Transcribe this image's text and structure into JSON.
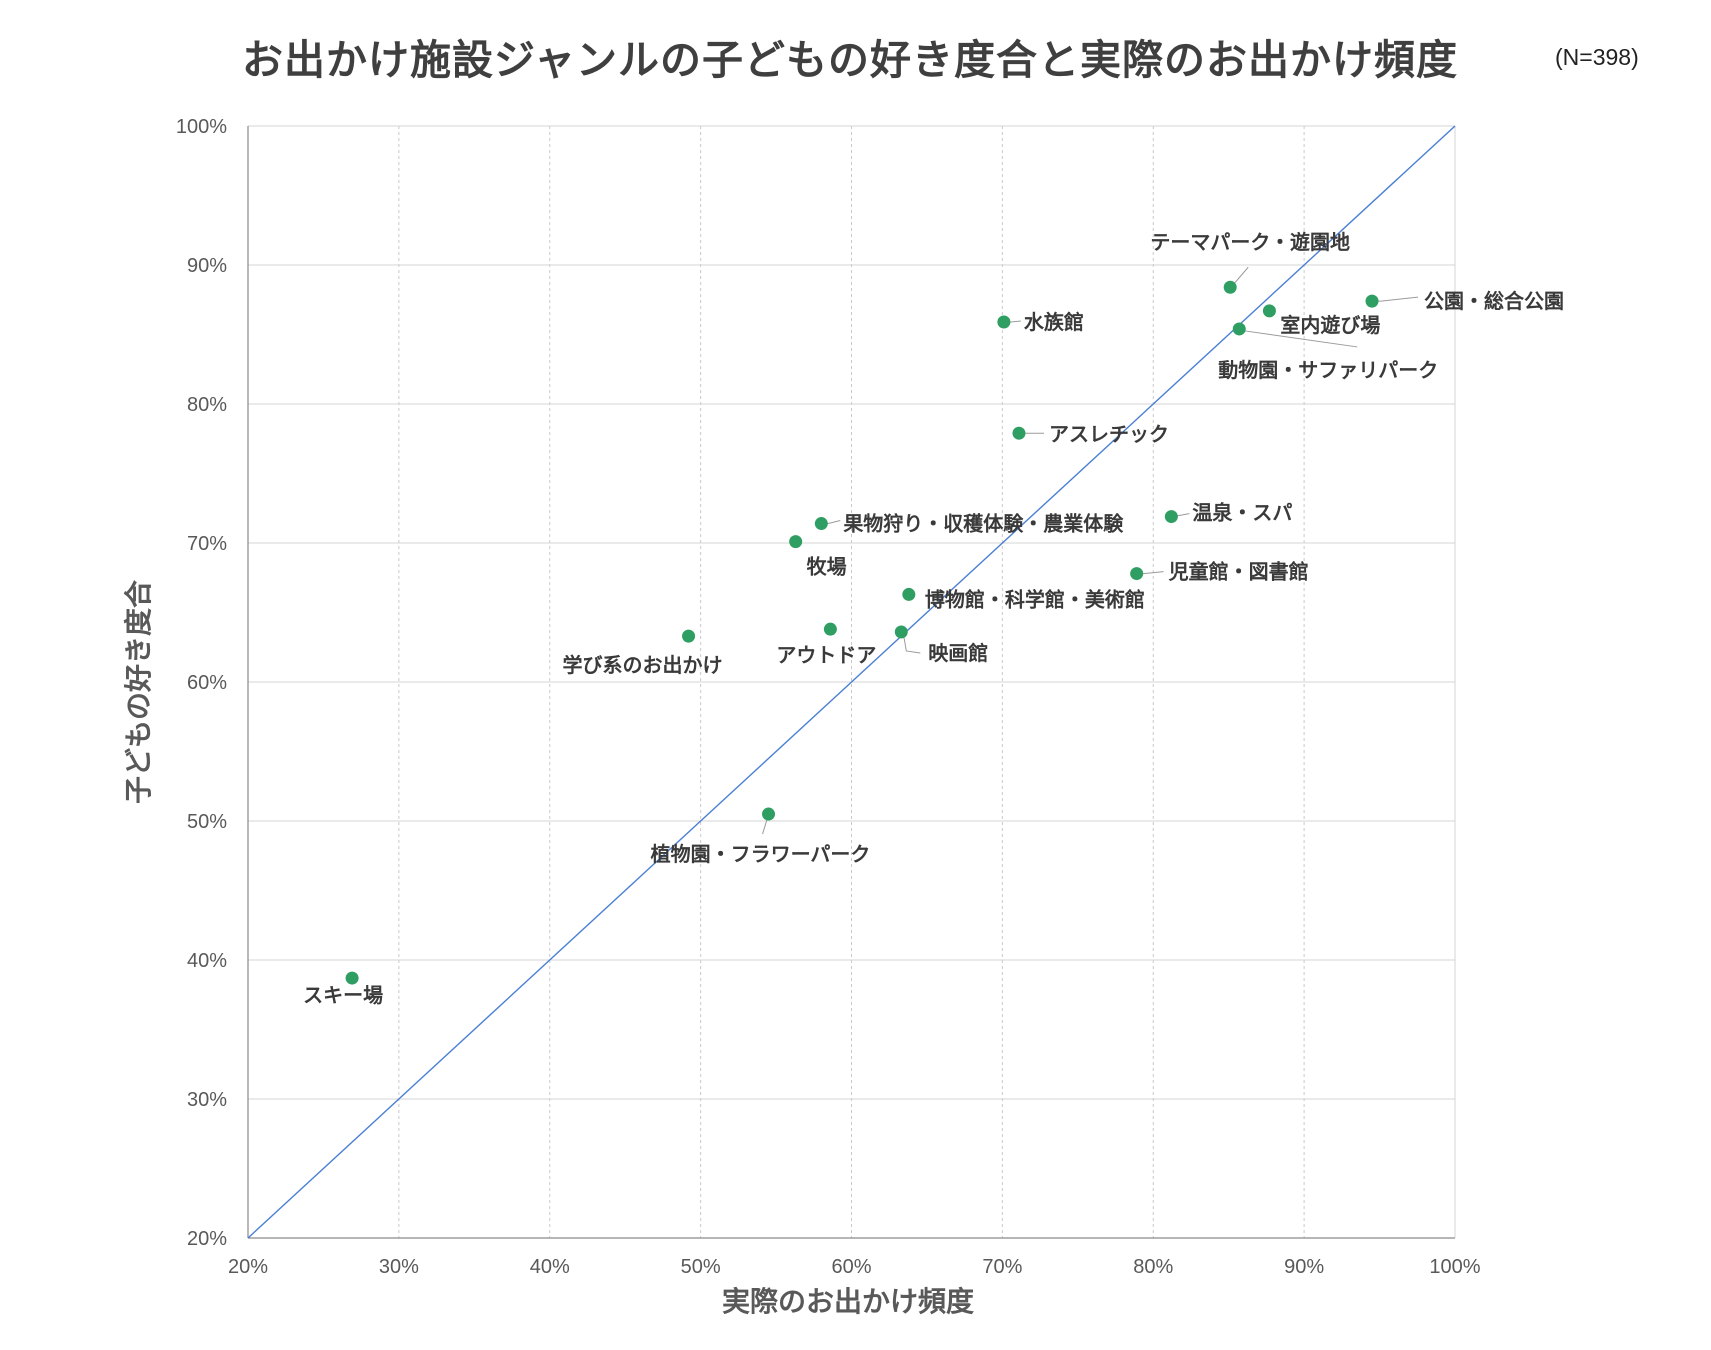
{
  "chart_data": {
    "type": "scatter",
    "title": "お出かけ施設ジャンルの子どもの好き度合と実際のお出かけ頻度",
    "subtitle": "(N=398)",
    "xlabel": "実際のお出かけ頻度",
    "ylabel": "子どもの好き度合",
    "xlim": [
      20,
      100
    ],
    "ylim": [
      20,
      100
    ],
    "x_ticks": [
      "20%",
      "30%",
      "40%",
      "50%",
      "60%",
      "70%",
      "80%",
      "90%",
      "100%"
    ],
    "y_ticks": [
      "20%",
      "30%",
      "40%",
      "50%",
      "60%",
      "70%",
      "80%",
      "90%",
      "100%"
    ],
    "grid": true,
    "reference_line": "y = x",
    "point_color": "#2e9e62",
    "line_color": "#4a7fd4",
    "points": [
      {
        "label": "テーマパーク・遊園地",
        "x": 85.1,
        "y": 88.4
      },
      {
        "label": "公園・総合公園",
        "x": 94.5,
        "y": 87.4
      },
      {
        "label": "室内遊び場",
        "x": 87.7,
        "y": 86.7
      },
      {
        "label": "動物園・サファリパーク",
        "x": 85.7,
        "y": 85.4
      },
      {
        "label": "水族館",
        "x": 70.1,
        "y": 85.9
      },
      {
        "label": "アスレチック",
        "x": 71.1,
        "y": 77.9
      },
      {
        "label": "温泉・スパ",
        "x": 81.2,
        "y": 71.9
      },
      {
        "label": "果物狩り・収穫体験・農業体験",
        "x": 58.0,
        "y": 71.4
      },
      {
        "label": "牧場",
        "x": 56.3,
        "y": 70.1
      },
      {
        "label": "児童館・図書館",
        "x": 78.9,
        "y": 67.8
      },
      {
        "label": "博物館・科学館・美術館",
        "x": 63.8,
        "y": 66.3
      },
      {
        "label": "アウトドア",
        "x": 58.6,
        "y": 63.8
      },
      {
        "label": "映画館",
        "x": 63.3,
        "y": 63.6
      },
      {
        "label": "学び系のお出かけ",
        "x": 49.2,
        "y": 63.3
      },
      {
        "label": "植物園・フラワーパーク",
        "x": 54.5,
        "y": 50.5
      },
      {
        "label": "スキー場",
        "x": 26.9,
        "y": 38.7
      }
    ]
  }
}
